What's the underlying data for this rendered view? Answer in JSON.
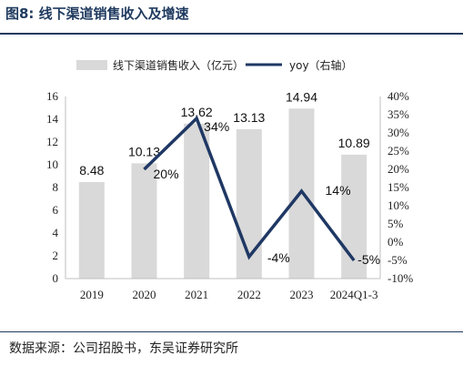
{
  "figure": {
    "title": "图8:  线下渠道销售收入及增速",
    "source": "数据来源：公司招股书，东吴证券研究所"
  },
  "chart_data": {
    "type": "bar+line",
    "categories": [
      "2019",
      "2020",
      "2021",
      "2022",
      "2023",
      "2024Q1-3"
    ],
    "series": [
      {
        "name": "线下渠道销售收入（亿元）",
        "type": "bar",
        "axis": "left",
        "color": "#d9d9d9",
        "values": [
          8.48,
          10.13,
          13.62,
          13.13,
          14.94,
          10.89
        ],
        "labels": [
          "8.48",
          "10.13",
          "13.62",
          "13.13",
          "14.94",
          "10.89"
        ]
      },
      {
        "name": "yoy（右轴）",
        "type": "line",
        "axis": "right",
        "color": "#1f3864",
        "values": [
          null,
          20,
          34,
          -4,
          14,
          -5
        ],
        "labels": [
          "",
          "20%",
          "34%",
          "-4%",
          "14%",
          "-5%"
        ]
      }
    ],
    "y_left": {
      "min": 0,
      "max": 16,
      "step": 2,
      "ticks": [
        "0",
        "2",
        "4",
        "6",
        "8",
        "10",
        "12",
        "14",
        "16"
      ]
    },
    "y_right": {
      "min": -10,
      "max": 40,
      "step": 5,
      "ticks": [
        "-10%",
        "-5%",
        "0%",
        "5%",
        "10%",
        "15%",
        "20%",
        "25%",
        "30%",
        "35%",
        "40%"
      ]
    },
    "grid": false,
    "legend_position": "top"
  }
}
